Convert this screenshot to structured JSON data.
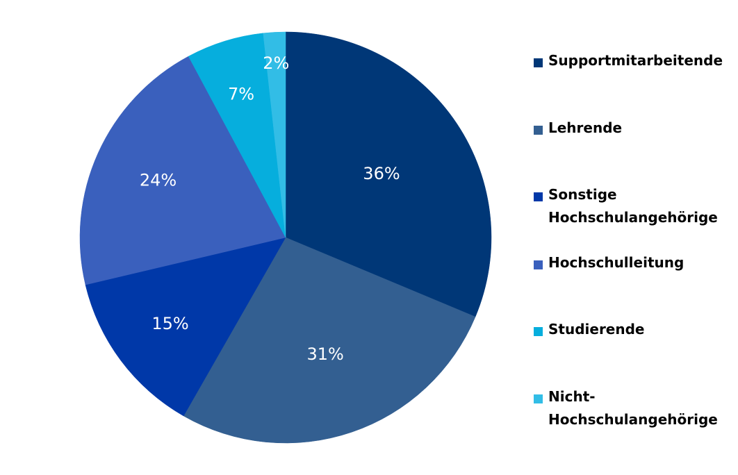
{
  "chart_data": {
    "type": "pie",
    "title": "",
    "start": "12 o'clock",
    "direction": "clockwise",
    "categories": [
      "Supportmitarbeitende",
      "Lehrende",
      "Sonstige Hochschulangehörige",
      "Hochschulleitung",
      "Studierende",
      "Nicht-Hochschulangehörige"
    ],
    "values": [
      36,
      31,
      15,
      24,
      7,
      2
    ],
    "value_labels": [
      "36%",
      "31%",
      "15%",
      "24%",
      "7%",
      "2%"
    ],
    "colors": [
      "#003777",
      "#335f91",
      "#0038a8",
      "#3a60bd",
      "#06aedd",
      "#32bde6"
    ],
    "legend_position": "right"
  },
  "legend": {
    "items": [
      {
        "label": "Supportmitarbeitende",
        "color": "#003777"
      },
      {
        "label": "Lehrende",
        "color": "#335f91"
      },
      {
        "label": "Sonstige Hochschulangehörige",
        "color": "#0038a8"
      },
      {
        "label": "Hochschulleitung",
        "color": "#3a60bd"
      },
      {
        "label": "Studierende",
        "color": "#06aedd"
      },
      {
        "label": "Nicht-Hochschulangehörige",
        "color": "#32bde6"
      }
    ]
  }
}
